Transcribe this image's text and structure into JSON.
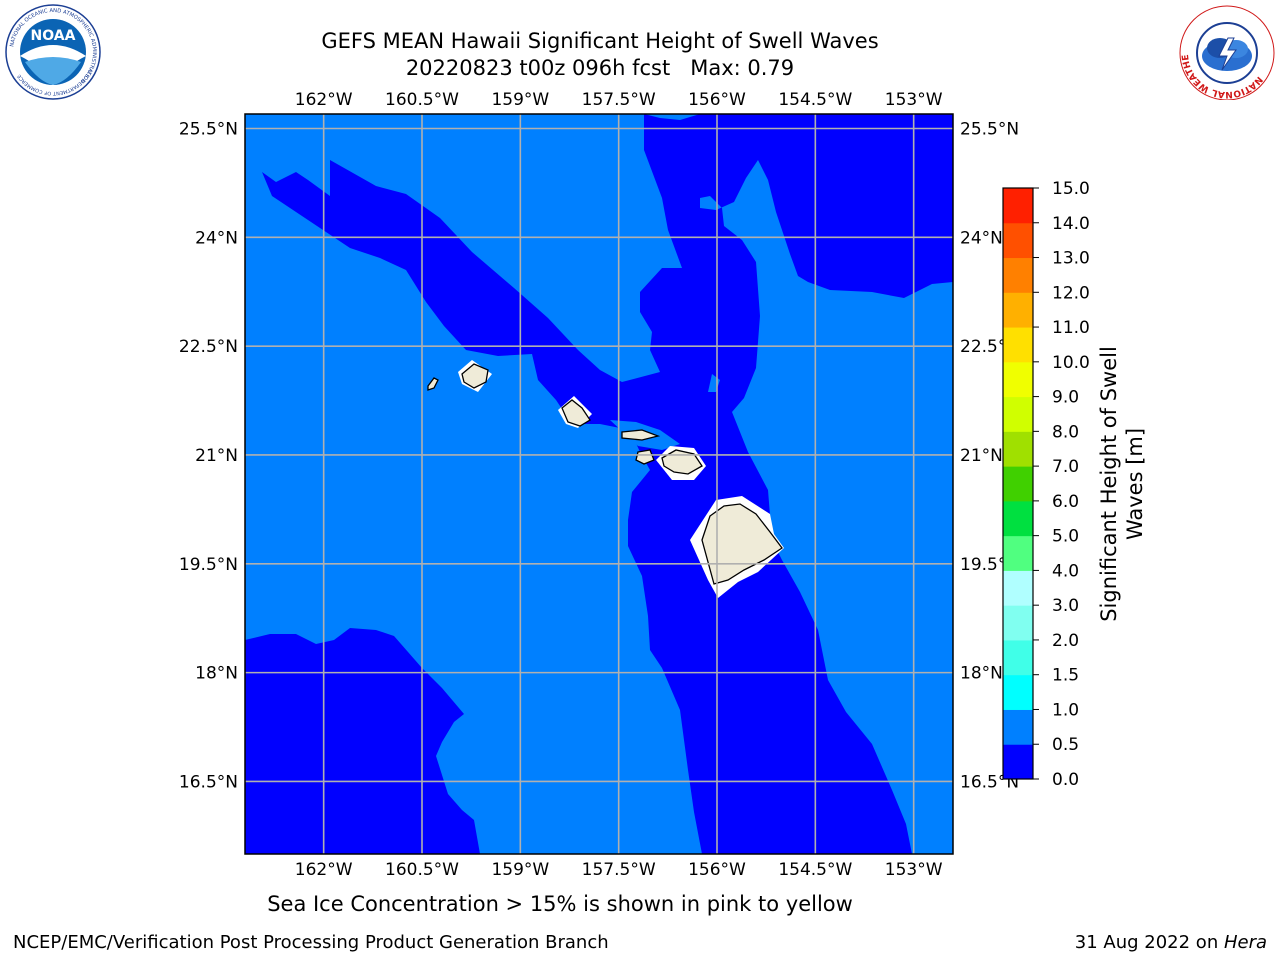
{
  "title": {
    "line1": "GEFS MEAN Hawaii Significant Height of Swell Waves",
    "line2": "20220823 t00z 096h fcst   Max: 0.79"
  },
  "logos": {
    "noaa": {
      "label": "NOAA",
      "ring_text": "NATIONAL OCEANIC AND ATMOSPHERIC ADMINISTRATION",
      "bottom_text": "U.S. DEPARTMENT OF COMMERCE"
    },
    "nws": {
      "ring_text": "NATIONAL WEATHER SERVICE"
    }
  },
  "map": {
    "projection": "PlateCarree",
    "lon_range": [
      -163.2,
      -152.4
    ],
    "lat_range": [
      15.5,
      25.7
    ],
    "gridlines": true,
    "lon_ticks": [
      {
        "value": -162.0,
        "label": "162°W"
      },
      {
        "value": -160.5,
        "label": "160.5°W"
      },
      {
        "value": -159.0,
        "label": "159°W"
      },
      {
        "value": -157.5,
        "label": "157.5°W"
      },
      {
        "value": -156.0,
        "label": "156°W"
      },
      {
        "value": -154.5,
        "label": "154.5°W"
      },
      {
        "value": -153.0,
        "label": "153°W"
      }
    ],
    "lat_ticks": [
      {
        "value": 25.5,
        "label": "25.5°N"
      },
      {
        "value": 24.0,
        "label": "24°N"
      },
      {
        "value": 22.5,
        "label": "22.5°N"
      },
      {
        "value": 21.0,
        "label": "21°N"
      },
      {
        "value": 19.5,
        "label": "19.5°N"
      },
      {
        "value": 18.0,
        "label": "18°N"
      },
      {
        "value": 16.5,
        "label": "16.5°N"
      }
    ],
    "colors": {
      "band_0_0_5": "#0000ff",
      "band_0_5_1_0": "#0080ff",
      "land": "#efebd8",
      "gridline": "#b0b0b0"
    }
  },
  "colorbar": {
    "label_line1": "Significant Height of Swell",
    "label_line2": "Waves [m]",
    "ticks": [
      "0.0",
      "0.5",
      "1.0",
      "1.5",
      "2.0",
      "3.0",
      "4.0",
      "5.0",
      "6.0",
      "7.0",
      "8.0",
      "9.0",
      "10.0",
      "11.0",
      "12.0",
      "13.0",
      "14.0",
      "15.0"
    ],
    "colors": [
      "#0000ff",
      "#0080ff",
      "#00ffff",
      "#40ffe8",
      "#80fff0",
      "#b0ffff",
      "#50ff80",
      "#00e040",
      "#40d000",
      "#a0e000",
      "#d0ff00",
      "#f0ff00",
      "#ffe000",
      "#ffb000",
      "#ff8000",
      "#ff5000",
      "#ff2000"
    ]
  },
  "footer": {
    "note": "Sea Ice Concentration > 15% is shown in pink to yellow",
    "left": "NCEP/EMC/Verification Post Processing Product Generation Branch",
    "right_prefix": "31 Aug 2022 on ",
    "right_host": "Hera"
  }
}
